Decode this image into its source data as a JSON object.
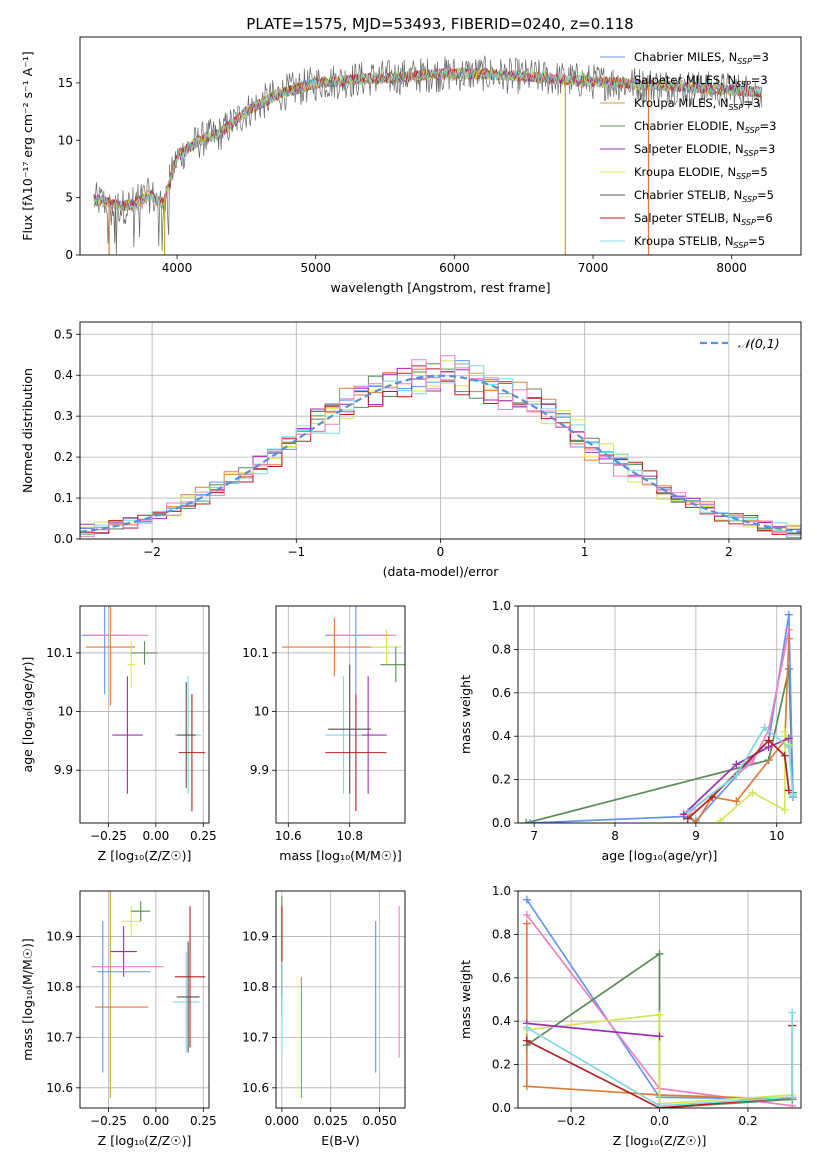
{
  "figure_title": "PLATE=1575, MJD=53493, FIBERID=0240, z=0.118",
  "colors": {
    "miles_chabrier": "#6495ed",
    "miles_salpeter": "#e07b39",
    "miles_kroupa": "#c8a040",
    "elodie_chabrier": "#5b8c5a",
    "elodie_salpeter": "#9b30b0",
    "elodie_kroupa": "#d6e65a",
    "stelib_chabrier": "#555555",
    "stelib_salpeter": "#b22222",
    "stelib_kroupa": "#7fd8e0",
    "pink": "#f080c0",
    "dashed": "#5b8fd8"
  },
  "chart_data": [
    {
      "id": "spectrum",
      "type": "line",
      "xlabel": "wavelength [Angstrom, rest frame]",
      "ylabel": "Flux [fλ10⁻¹⁷ erg cm⁻² s⁻¹ A⁻¹]",
      "xlim": [
        3300,
        8500
      ],
      "ylim": [
        0,
        19
      ],
      "xticks": [
        4000,
        5000,
        6000,
        7000,
        8000
      ],
      "yticks": [
        0,
        5,
        10,
        15
      ],
      "legend_position": "right",
      "legend": [
        {
          "label": "Chabrier MILES, N",
          "sub": "SSP",
          "tail": "=3",
          "color": "#6495ed"
        },
        {
          "label": "Salpeter MILES, N",
          "sub": "SSP",
          "tail": "=3",
          "color": "#e07b39"
        },
        {
          "label": "Kroupa MILES, N",
          "sub": "SSP",
          "tail": "=3",
          "color": "#c8a040"
        },
        {
          "label": "Chabrier ELODIE, N",
          "sub": "SSP",
          "tail": "=3",
          "color": "#5b8c5a"
        },
        {
          "label": "Salpeter ELODIE, N",
          "sub": "SSP",
          "tail": "=3",
          "color": "#9b30b0"
        },
        {
          "label": "Kroupa ELODIE, N",
          "sub": "SSP",
          "tail": "=5",
          "color": "#d6e65a"
        },
        {
          "label": "Chabrier STELIB, N",
          "sub": "SSP",
          "tail": "=5",
          "color": "#555555"
        },
        {
          "label": "Salpeter STELIB, N",
          "sub": "SSP",
          "tail": "=6",
          "color": "#b22222"
        },
        {
          "label": "Kroupa STELIB, N",
          "sub": "SSP",
          "tail": "=5",
          "color": "#7fd8e0"
        }
      ],
      "continuum": {
        "x": [
          3400,
          3500,
          3600,
          3700,
          3800,
          3900,
          4000,
          4100,
          4200,
          4300,
          4400,
          4500,
          4600,
          4700,
          4800,
          4900,
          5000,
          5200,
          5400,
          5600,
          5800,
          6000,
          6200,
          6400,
          6600,
          6800,
          7000,
          7200,
          7400,
          7600,
          7800,
          8000,
          8200
        ],
        "y": [
          4.8,
          4.6,
          4.2,
          4.5,
          5.2,
          4.5,
          8.5,
          9.5,
          10.2,
          10.5,
          11.5,
          12.5,
          13.2,
          13.8,
          14.3,
          14.6,
          15.0,
          15.2,
          15.4,
          15.5,
          15.7,
          15.8,
          15.8,
          15.6,
          15.5,
          15.3,
          15.1,
          15.0,
          14.8,
          14.7,
          14.5,
          14.4,
          14.2
        ]
      },
      "drops": [
        {
          "x": 3510,
          "color": "#e07b39"
        },
        {
          "x": 3910,
          "color": "#c8a040"
        },
        {
          "x": 6800,
          "color": "#c8a040"
        },
        {
          "x": 7400,
          "color": "#e07b39"
        }
      ]
    },
    {
      "id": "residuals",
      "type": "histogram",
      "xlabel": "(data-model)/error",
      "ylabel": "Normed distribution",
      "xlim": [
        -2.5,
        2.5
      ],
      "ylim": [
        0,
        0.53
      ],
      "xticks": [
        -2,
        -1,
        0,
        1,
        2
      ],
      "yticks": [
        0.0,
        0.1,
        0.2,
        0.3,
        0.4,
        0.5
      ],
      "legend": "𝒩(0,1)",
      "legend_position": "top-right",
      "bin_width": 0.1
    },
    {
      "id": "age_vs_Z",
      "type": "errorbar",
      "xlabel": "Z [log₁₀(Z/Z☉)]",
      "ylabel": "age  [log₁₀(age/yr)]",
      "xlim": [
        -0.4,
        0.28
      ],
      "ylim": [
        9.81,
        10.18
      ],
      "xticks": [
        -0.25,
        0.0,
        0.25
      ],
      "xtick_labels": [
        "−0.25",
        "0.00",
        "0.25"
      ],
      "yticks": [
        9.9,
        10.0,
        10.1
      ],
      "points": [
        {
          "x": -0.27,
          "y": 10.13,
          "xerr": 0.12,
          "yerr": 0.1,
          "color": "#6495ed"
        },
        {
          "x": -0.24,
          "y": 10.11,
          "xerr": 0.13,
          "yerr": 0.1,
          "color": "#e07b39"
        },
        {
          "x": -0.13,
          "y": 10.08,
          "xerr": 0.02,
          "yerr": 0.04,
          "color": "#d6e65a"
        },
        {
          "x": -0.06,
          "y": 10.1,
          "xerr": 0.07,
          "yerr": 0.02,
          "color": "#5b8c5a"
        },
        {
          "x": -0.15,
          "y": 9.96,
          "xerr": 0.08,
          "yerr": 0.1,
          "color": "#9b30b0"
        },
        {
          "x": -0.2,
          "y": 10.13,
          "xerr": 0.16,
          "yerr": 0.0,
          "color": "#f080c0"
        },
        {
          "x": 0.17,
          "y": 9.96,
          "xerr": 0.07,
          "yerr": 0.1,
          "color": "#7fd8e0"
        },
        {
          "x": 0.19,
          "y": 9.93,
          "xerr": 0.07,
          "yerr": 0.1,
          "color": "#b22222"
        },
        {
          "x": 0.16,
          "y": 9.96,
          "xerr": 0.05,
          "yerr": 0.09,
          "color": "#555555"
        }
      ]
    },
    {
      "id": "age_vs_mass",
      "type": "errorbar",
      "xlabel": "mass [log₁₀(M/M☉)]",
      "ylabel": "",
      "xlim": [
        10.56,
        10.98
      ],
      "ylim": [
        9.81,
        10.18
      ],
      "xticks": [
        10.6,
        10.8
      ],
      "yticks": [
        9.9,
        10.0,
        10.1
      ],
      "points": [
        {
          "x": 10.82,
          "y": 10.13,
          "xerr": 0.1,
          "yerr": 0.1,
          "color": "#6495ed"
        },
        {
          "x": 10.75,
          "y": 10.11,
          "xerr": 0.17,
          "yerr": 0.05,
          "color": "#e07b39"
        },
        {
          "x": 10.92,
          "y": 10.11,
          "xerr": 0.05,
          "yerr": 0.03,
          "color": "#d6e65a"
        },
        {
          "x": 10.95,
          "y": 10.08,
          "xerr": 0.05,
          "yerr": 0.03,
          "color": "#5b8c5a"
        },
        {
          "x": 10.84,
          "y": 10.13,
          "xerr": 0.11,
          "yerr": 0.0,
          "color": "#f080c0"
        },
        {
          "x": 10.86,
          "y": 9.96,
          "xerr": 0.06,
          "yerr": 0.1,
          "color": "#9b30b0"
        },
        {
          "x": 10.78,
          "y": 9.96,
          "xerr": 0.06,
          "yerr": 0.1,
          "color": "#7fd8e0"
        },
        {
          "x": 10.82,
          "y": 9.93,
          "xerr": 0.1,
          "yerr": 0.1,
          "color": "#b22222"
        },
        {
          "x": 10.8,
          "y": 9.97,
          "xerr": 0.07,
          "yerr": 0.11,
          "color": "#555555"
        }
      ]
    },
    {
      "id": "massweight_vs_age",
      "type": "line",
      "xlabel": "age  [log₁₀(age/yr)]",
      "ylabel": "mass weight",
      "xlim": [
        6.8,
        10.3
      ],
      "ylim": [
        0,
        1.0
      ],
      "xticks": [
        7,
        8,
        9,
        10
      ],
      "yticks": [
        0.0,
        0.2,
        0.4,
        0.6,
        0.8,
        1.0
      ],
      "series": [
        {
          "color": "#5b8c5a",
          "x": [
            6.9,
            9.9,
            10.15,
            10.2
          ],
          "y": [
            0.0,
            0.29,
            0.71,
            0.14
          ]
        },
        {
          "color": "#6495ed",
          "x": [
            6.95,
            8.85,
            9.0,
            9.9,
            10.15,
            10.2
          ],
          "y": [
            0.0,
            0.03,
            0.01,
            0.38,
            0.96,
            0.12
          ]
        },
        {
          "color": "#e07b39",
          "x": [
            8.9,
            9.0,
            9.2,
            9.5,
            10.1,
            10.15
          ],
          "y": [
            0.04,
            0.0,
            0.12,
            0.1,
            0.38,
            0.85
          ]
        },
        {
          "color": "#f080c0",
          "x": [
            8.95,
            9.7,
            9.9,
            10.15
          ],
          "y": [
            0.06,
            0.28,
            0.43,
            0.89
          ]
        },
        {
          "color": "#d6e65a",
          "x": [
            9.3,
            9.7,
            10.1,
            10.1,
            10.15
          ],
          "y": [
            0.01,
            0.14,
            0.06,
            0.42,
            0.36
          ]
        },
        {
          "color": "#9b30b0",
          "x": [
            8.85,
            9.5,
            9.9,
            10.15
          ],
          "y": [
            0.04,
            0.27,
            0.35,
            0.39
          ]
        },
        {
          "color": "#b22222",
          "x": [
            8.9,
            9.2,
            9.9,
            10.1,
            10.15
          ],
          "y": [
            0.02,
            0.12,
            0.38,
            0.31,
            0.15
          ]
        },
        {
          "color": "#7fd8e0",
          "x": [
            8.9,
            9.5,
            9.85,
            10.15,
            10.2
          ],
          "y": [
            0.05,
            0.22,
            0.44,
            0.35,
            0.13
          ]
        }
      ]
    },
    {
      "id": "mass_vs_Z",
      "type": "errorbar",
      "xlabel": "Z [log₁₀(Z/Z☉)]",
      "ylabel": "mass [log₁₀(M/M☉)]",
      "xlim": [
        -0.4,
        0.28
      ],
      "ylim": [
        10.56,
        10.99
      ],
      "xticks": [
        -0.25,
        0.0,
        0.25
      ],
      "xtick_labels": [
        "−0.25",
        "0.00",
        "0.25"
      ],
      "yticks": [
        10.6,
        10.7,
        10.8,
        10.9
      ],
      "points": [
        {
          "x": -0.28,
          "y": 10.78,
          "xerr": 0.0,
          "yerr": 0.15,
          "color": "#6495ed"
        },
        {
          "x": -0.24,
          "y": 10.8,
          "xerr": 0.0,
          "yerr": 0.22,
          "color": "#c8a040"
        },
        {
          "x": -0.18,
          "y": 10.76,
          "xerr": 0.14,
          "yerr": 0.0,
          "color": "#e07b39"
        },
        {
          "x": -0.13,
          "y": 10.93,
          "xerr": 0.05,
          "yerr": 0.03,
          "color": "#d6e65a"
        },
        {
          "x": -0.08,
          "y": 10.95,
          "xerr": 0.05,
          "yerr": 0.02,
          "color": "#5b8c5a"
        },
        {
          "x": -0.17,
          "y": 10.87,
          "xerr": 0.07,
          "yerr": 0.05,
          "color": "#9b30b0"
        },
        {
          "x": -0.15,
          "y": 10.84,
          "xerr": 0.19,
          "yerr": 0.0,
          "color": "#f080c0"
        },
        {
          "x": -0.17,
          "y": 10.83,
          "xerr": 0.14,
          "yerr": 0.0,
          "color": "#6495ed"
        },
        {
          "x": 0.16,
          "y": 10.77,
          "xerr": 0.07,
          "yerr": 0.1,
          "color": "#7fd8e0"
        },
        {
          "x": 0.18,
          "y": 10.82,
          "xerr": 0.08,
          "yerr": 0.14,
          "color": "#b22222"
        },
        {
          "x": 0.17,
          "y": 10.78,
          "xerr": 0.06,
          "yerr": 0.11,
          "color": "#555555"
        }
      ]
    },
    {
      "id": "mass_vs_EBV",
      "type": "errorbar",
      "xlabel": "E(B-V)",
      "ylabel": "",
      "xlim": [
        -0.003,
        0.063
      ],
      "ylim": [
        10.56,
        10.99
      ],
      "xticks": [
        0.0,
        0.025,
        0.05
      ],
      "xtick_labels": [
        "0.000",
        "0.025",
        "0.050"
      ],
      "yticks": [
        10.6,
        10.7,
        10.8,
        10.9
      ],
      "points": [
        {
          "x": 0.0,
          "y": 10.86,
          "xerr": 0,
          "yerr": 0.12,
          "color": "#5b8c5a"
        },
        {
          "x": 0.0,
          "y": 10.87,
          "xerr": 0,
          "yerr": 0.09,
          "color": "#b22222"
        },
        {
          "x": 0.0,
          "y": 10.76,
          "xerr": 0,
          "yerr": 0.09,
          "color": "#7fd8e0"
        },
        {
          "x": 0.01,
          "y": 10.7,
          "xerr": 0,
          "yerr": 0.12,
          "color": "#e07b39"
        },
        {
          "x": 0.048,
          "y": 10.78,
          "xerr": 0,
          "yerr": 0.15,
          "color": "#6495ed"
        },
        {
          "x": 0.06,
          "y": 10.81,
          "xerr": 0,
          "yerr": 0.15,
          "color": "#f080c0"
        }
      ]
    },
    {
      "id": "massweight_vs_Z",
      "type": "line",
      "xlabel": "Z [log₁₀(Z/Z☉)]",
      "ylabel": "mass weight",
      "xlim": [
        -0.32,
        0.32
      ],
      "ylim": [
        0,
        1.0
      ],
      "xticks": [
        -0.2,
        0.0,
        0.2
      ],
      "xtick_labels": [
        "−0.2",
        "0.0",
        "0.2"
      ],
      "yticks": [
        0.0,
        0.2,
        0.4,
        0.6,
        0.8,
        1.0
      ],
      "series": [
        {
          "color": "#6495ed",
          "x": [
            -0.3,
            0.0,
            0.3
          ],
          "y": [
            0.96,
            0.05,
            0.04
          ]
        },
        {
          "color": "#f080c0",
          "x": [
            -0.3,
            0.0,
            0.3
          ],
          "y": [
            0.89,
            0.09,
            0.01
          ]
        },
        {
          "color": "#e07b39",
          "x": [
            -0.3,
            -0.3,
            0.0,
            0.3
          ],
          "y": [
            0.85,
            0.1,
            0.06,
            0.04
          ]
        },
        {
          "color": "#5b8c5a",
          "x": [
            -0.3,
            0.0,
            0.0,
            0.3
          ],
          "y": [
            0.29,
            0.71,
            0.0,
            0.04
          ]
        },
        {
          "color": "#d6e65a",
          "x": [
            -0.3,
            0.0,
            0.0,
            0.3
          ],
          "y": [
            0.36,
            0.43,
            0.02,
            0.06
          ]
        },
        {
          "color": "#9b30b0",
          "x": [
            -0.3,
            0.0
          ],
          "y": [
            0.39,
            0.33
          ]
        },
        {
          "color": "#b22222",
          "x": [
            -0.3,
            0.0,
            0.3,
            0.3
          ],
          "y": [
            0.31,
            0.0,
            0.05,
            0.38
          ]
        },
        {
          "color": "#7fd8e0",
          "x": [
            -0.3,
            0.0,
            0.3,
            0.3
          ],
          "y": [
            0.37,
            0.01,
            0.05,
            0.44
          ]
        }
      ]
    }
  ]
}
